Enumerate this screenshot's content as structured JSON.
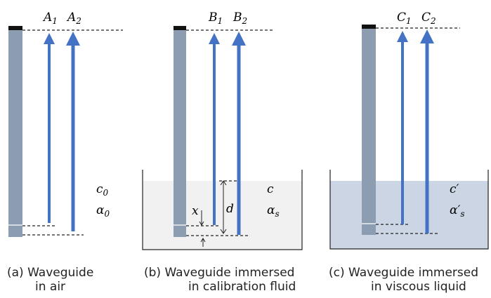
{
  "panels": [
    {
      "arrows": [
        {
          "base": "A",
          "sub": "1"
        },
        {
          "base": "A",
          "sub": "2"
        }
      ],
      "props": [
        {
          "base": "c",
          "sub": "0"
        },
        {
          "base": "α",
          "sub": "0"
        }
      ],
      "caption": [
        "(a) Waveguide",
        "in air"
      ]
    },
    {
      "arrows": [
        {
          "base": "B",
          "sub": "1"
        },
        {
          "base": "B",
          "sub": "2"
        }
      ],
      "props": [
        {
          "base": "c",
          "sub": ""
        },
        {
          "base": "α",
          "sub": "s"
        }
      ],
      "marks": [
        "x",
        "d"
      ],
      "caption": [
        "(b) Waveguide immersed",
        "in calibration fluid"
      ]
    },
    {
      "arrows": [
        {
          "base": "C",
          "sub": "1"
        },
        {
          "base": "C",
          "sub": "2"
        }
      ],
      "props": [
        {
          "base": "c′",
          "sub": ""
        },
        {
          "base": "α′",
          "sub": "s"
        }
      ],
      "caption": [
        "(c) Waveguide immersed",
        "in viscous liquid"
      ]
    }
  ]
}
